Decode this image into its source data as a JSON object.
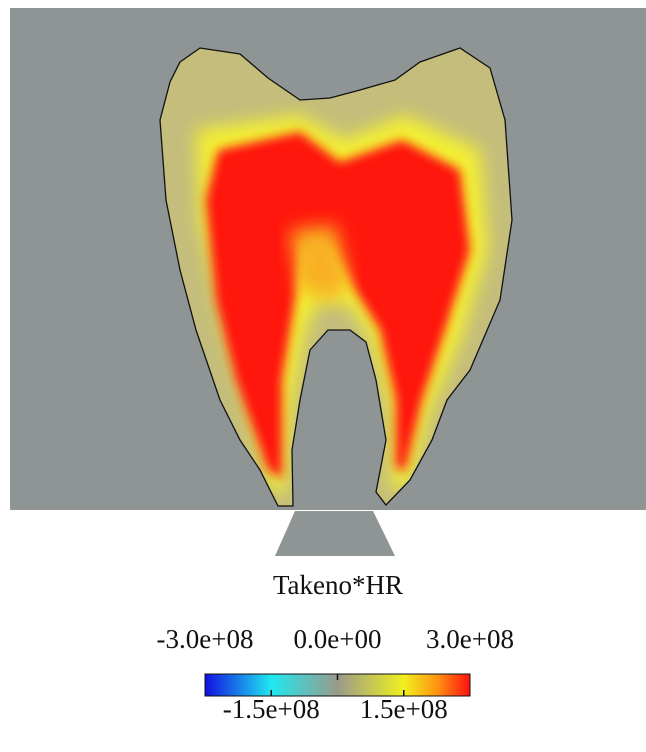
{
  "colorbar": {
    "title": "Takeno*HR",
    "range": [
      -300000000,
      300000000
    ],
    "ticks_top": [
      {
        "value": -300000000,
        "label": "-3.0e+08"
      },
      {
        "value": 0,
        "label": "0.0e+00"
      },
      {
        "value": 300000000,
        "label": "3.0e+08"
      }
    ],
    "ticks_bottom": [
      {
        "value": -150000000,
        "label": "-1.5e+08"
      },
      {
        "value": 150000000,
        "label": "1.5e+08"
      }
    ]
  }
}
